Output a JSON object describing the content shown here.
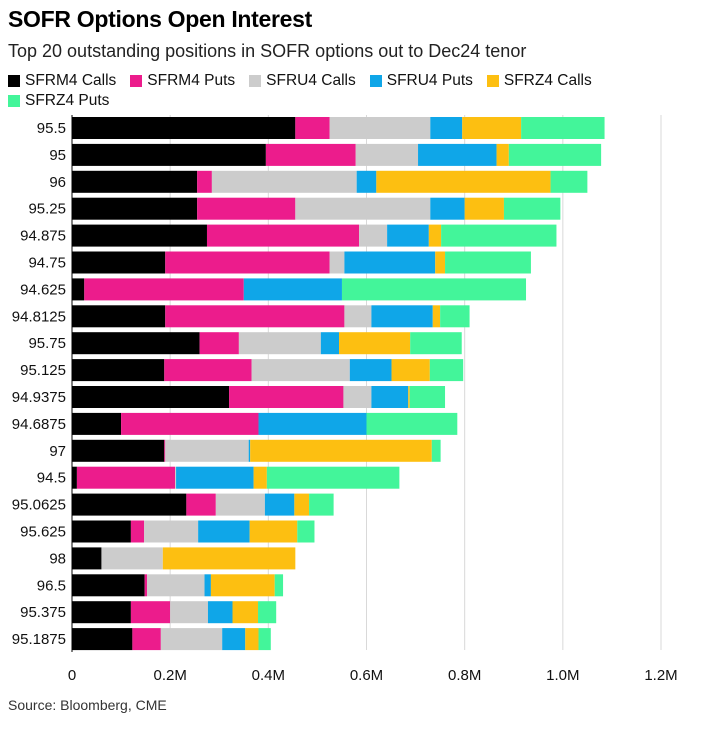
{
  "chart_data": {
    "type": "bar",
    "orientation": "horizontal",
    "stacked": true,
    "title": "SOFR Options Open Interest",
    "subtitle": "Top 20 outstanding positions in SOFR options out to Dec24 tenor",
    "source": "Source: Bloomberg, CME",
    "xlim": [
      0,
      1200000
    ],
    "x_ticks": [
      0,
      200000,
      400000,
      600000,
      800000,
      1000000,
      1200000
    ],
    "x_tick_labels": [
      "0",
      "0.2M",
      "0.4M",
      "0.6M",
      "0.8M",
      "1.0M",
      "1.2M"
    ],
    "legend_position": "top",
    "categories": [
      "95.5",
      "95",
      "96",
      "95.25",
      "94.875",
      "94.75",
      "94.625",
      "94.8125",
      "95.75",
      "95.125",
      "94.9375",
      "94.6875",
      "97",
      "94.5",
      "95.0625",
      "95.625",
      "98",
      "96.5",
      "95.375",
      "95.1875"
    ],
    "series": [
      {
        "name": "SFRM4 Calls",
        "color": "#000000",
        "values": [
          455000,
          395000,
          255000,
          255000,
          275000,
          190000,
          25000,
          190000,
          260000,
          188000,
          320000,
          100000,
          188000,
          10000,
          233000,
          120000,
          60000,
          148000,
          120000,
          123000
        ]
      },
      {
        "name": "SFRM4 Puts",
        "color": "#ec1c8c",
        "values": [
          70000,
          183000,
          30000,
          200000,
          310000,
          335000,
          325000,
          365000,
          80000,
          178000,
          233000,
          280000,
          2000,
          200000,
          60000,
          27000,
          0,
          5000,
          80000,
          58000
        ]
      },
      {
        "name": "SFRU4 Calls",
        "color": "#cccccc",
        "values": [
          205000,
          127000,
          295000,
          275000,
          57000,
          30000,
          0,
          55000,
          167000,
          200000,
          57000,
          0,
          170000,
          2000,
          100000,
          110000,
          125000,
          117000,
          77000,
          125000
        ]
      },
      {
        "name": "SFRU4 Puts",
        "color": "#0fa6e8",
        "values": [
          65000,
          160000,
          40000,
          70000,
          85000,
          185000,
          200000,
          125000,
          37000,
          85000,
          75000,
          220000,
          3000,
          158000,
          60000,
          105000,
          0,
          13000,
          50000,
          47000
        ]
      },
      {
        "name": "SFRZ4 Calls",
        "color": "#fdbf11",
        "values": [
          120000,
          25000,
          355000,
          80000,
          25000,
          20000,
          0,
          15000,
          145000,
          78000,
          3000,
          0,
          370000,
          27000,
          30000,
          97000,
          270000,
          130000,
          52000,
          27000
        ]
      },
      {
        "name": "SFRZ4 Puts",
        "color": "#43f59a",
        "values": [
          170000,
          188000,
          75000,
          115000,
          235000,
          175000,
          375000,
          60000,
          105000,
          68000,
          72000,
          185000,
          18000,
          270000,
          50000,
          35000,
          0,
          17000,
          37000,
          25000
        ]
      }
    ]
  }
}
